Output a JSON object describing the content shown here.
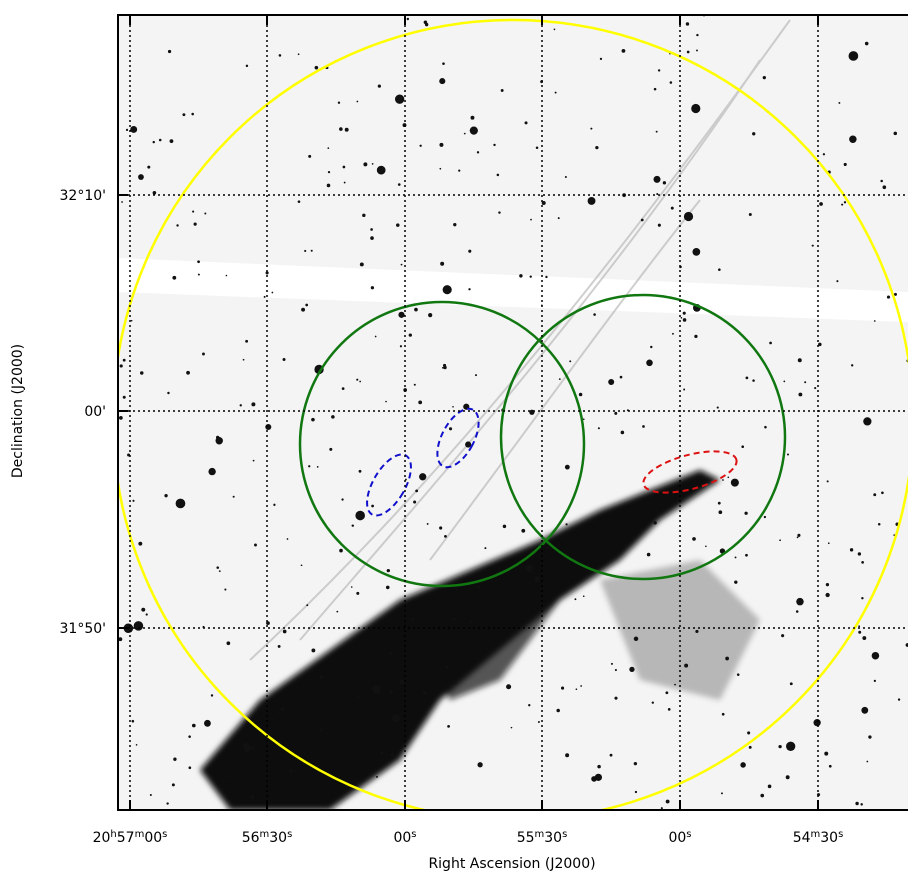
{
  "axes": {
    "x_label": "Right Ascension (J2000)",
    "y_label": "Declination (J2000)",
    "x_ticks": [
      [
        {
          "t": "20"
        },
        {
          "t": "h",
          "sup": true
        },
        {
          "t": "57"
        },
        {
          "t": "m",
          "sup": true
        },
        {
          "t": "00"
        },
        {
          "t": "s",
          "sup": true
        }
      ],
      [
        {
          "t": "56"
        },
        {
          "t": "m",
          "sup": true
        },
        {
          "t": "30"
        },
        {
          "t": "s",
          "sup": true
        }
      ],
      [
        {
          "t": "00"
        },
        {
          "t": "s",
          "sup": true
        }
      ],
      [
        {
          "t": "55"
        },
        {
          "t": "m",
          "sup": true
        },
        {
          "t": "30"
        },
        {
          "t": "s",
          "sup": true
        }
      ],
      [
        {
          "t": "00"
        },
        {
          "t": "s",
          "sup": true
        }
      ],
      [
        {
          "t": "54"
        },
        {
          "t": "m",
          "sup": true
        },
        {
          "t": "30"
        },
        {
          "t": "s",
          "sup": true
        }
      ]
    ],
    "y_ticks": [
      "32°10'",
      "00'",
      "31°50'"
    ]
  }
}
